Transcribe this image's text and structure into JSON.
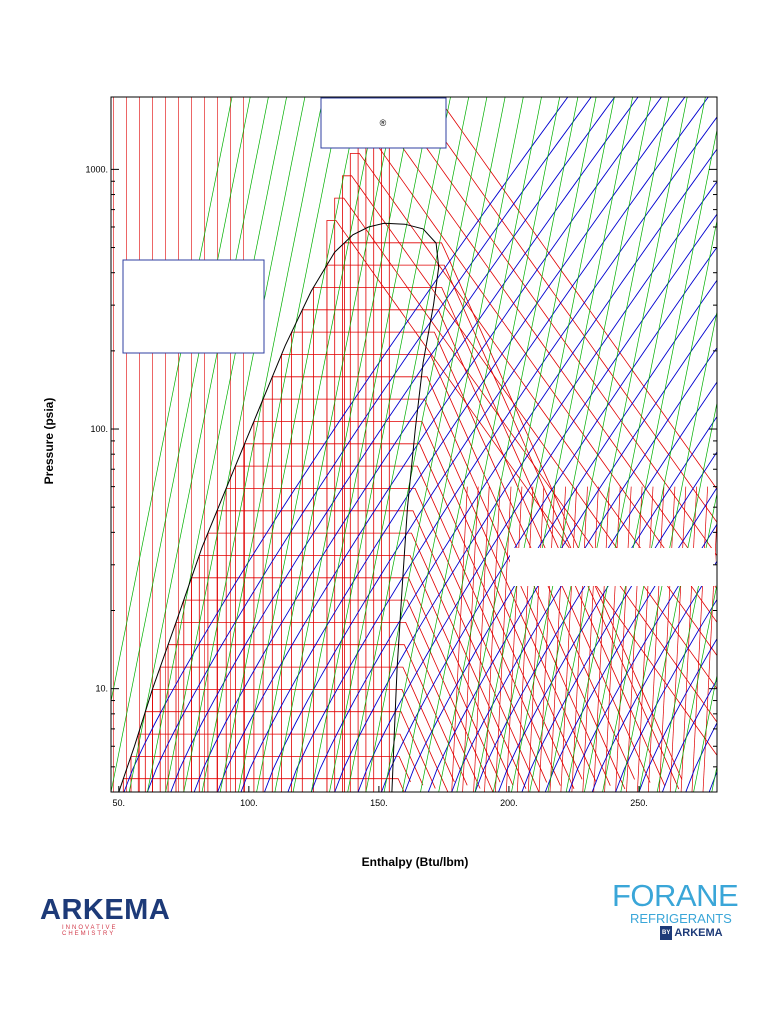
{
  "chart_data": {
    "type": "line",
    "xlabel": "Enthalpy (Btu/lbm)",
    "ylabel": "Pressure (psia)",
    "x_axis": {
      "min": 47,
      "max": 280,
      "scale": "linear"
    },
    "y_axis": {
      "min": 4,
      "max": 1900,
      "scale": "log"
    },
    "x_ticks": [
      {
        "value": 50,
        "label": "50."
      },
      {
        "value": 100,
        "label": "100."
      },
      {
        "value": 150,
        "label": "150."
      },
      {
        "value": 200,
        "label": "200."
      },
      {
        "value": 250,
        "label": "250."
      }
    ],
    "y_ticks": [
      {
        "value": 10,
        "label": "10."
      },
      {
        "value": 100,
        "label": "100."
      },
      {
        "value": 1000,
        "label": "1000."
      }
    ],
    "saturation_dome": {
      "liquid_line": [
        [
          50,
          4
        ],
        [
          56,
          6
        ],
        [
          63,
          10
        ],
        [
          72,
          18
        ],
        [
          82,
          35
        ],
        [
          93,
          65
        ],
        [
          104,
          120
        ],
        [
          114,
          210
        ],
        [
          124,
          340
        ],
        [
          133,
          480
        ],
        [
          140,
          560
        ],
        [
          146,
          600
        ],
        [
          152,
          620
        ]
      ],
      "vapor_line": [
        [
          152,
          620
        ],
        [
          160,
          615
        ],
        [
          167,
          590
        ],
        [
          172,
          520
        ],
        [
          173,
          420
        ],
        [
          171,
          300
        ],
        [
          167,
          180
        ],
        [
          164,
          100
        ],
        [
          161,
          50
        ],
        [
          159,
          25
        ],
        [
          157,
          12
        ],
        [
          156,
          7
        ],
        [
          155,
          4
        ]
      ]
    },
    "isotherms_color": "#e00000",
    "isentropes_color": "#0000d0",
    "isochores_color": "#00b000",
    "dome_color": "#000000",
    "registered_mark": "®",
    "logo_left": {
      "name": "ARKEMA",
      "tagline": "INNOVATIVE CHEMISTRY"
    },
    "logo_right": {
      "name": "FORANE",
      "sub": "REFRIGERANTS",
      "by_badge": "BY",
      "by_name": "ARKEMA"
    }
  }
}
